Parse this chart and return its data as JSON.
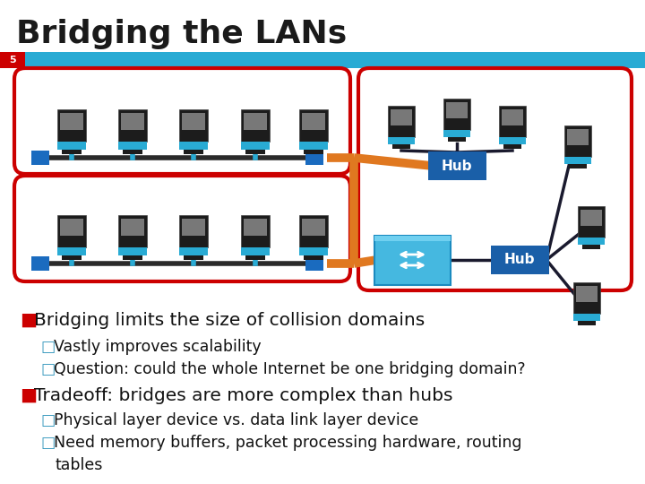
{
  "title": "Bridging the LANs",
  "slide_number": "5",
  "bg_color": "#ffffff",
  "title_color": "#1a1a1a",
  "title_fontsize": 26,
  "cyan_bar_color": "#29ABD4",
  "red_num_bg": "#CC0000",
  "bullet_items": [
    {
      "text": "Bridging limits the size of collision domains",
      "level": 1,
      "fontsize": 14.5
    },
    {
      "text": "Vastly improves scalability",
      "level": 2,
      "fontsize": 12.5
    },
    {
      "text": "Question: could the whole Internet be one bridging domain?",
      "level": 2,
      "fontsize": 12.5
    },
    {
      "text": "Tradeoff: bridges are more complex than hubs",
      "level": 1,
      "fontsize": 14.5
    },
    {
      "text": "Physical layer device vs. data link layer device",
      "level": 2,
      "fontsize": 12.5
    },
    {
      "text": "Need memory buffers, packet processing hardware, routing",
      "level": 2,
      "fontsize": 12.5
    },
    {
      "text": "tables",
      "level": 3,
      "fontsize": 12.5
    }
  ],
  "red_color": "#cc0000",
  "hub_color": "#1a5fa8",
  "hub_text_color": "#ffffff",
  "switch_color": "#29ABD4",
  "bus_color": "#2a2a2a",
  "bus_cap_color": "#1a6bbf",
  "orange_color": "#E07820",
  "dark_line_color": "#1a1a2e",
  "computer_body_color": "#1e1e1e",
  "computer_base_color": "#29ABD4",
  "computer_panel_color": "#888888"
}
